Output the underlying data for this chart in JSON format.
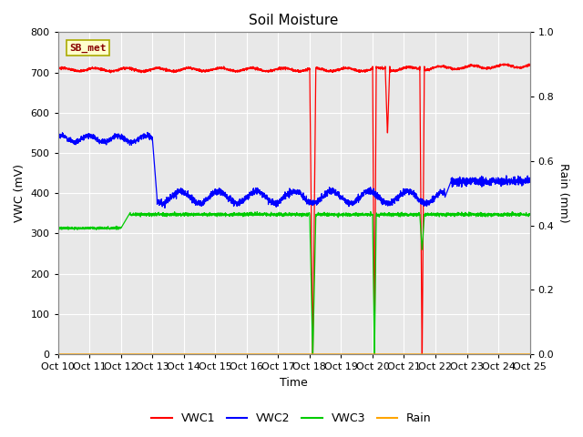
{
  "title": "Soil Moisture",
  "xlabel": "Time",
  "ylabel_left": "VWC (mV)",
  "ylabel_right": "Rain (mm)",
  "xlim": [
    0,
    15
  ],
  "ylim_left": [
    0,
    800
  ],
  "ylim_right": [
    0,
    1.0
  ],
  "xtick_labels": [
    "Oct 10",
    "Oct 11",
    "Oct 12",
    "Oct 13",
    "Oct 14",
    "Oct 15",
    "Oct 16",
    "Oct 17",
    "Oct 18",
    "Oct 19",
    "Oct 20",
    "Oct 21",
    "Oct 22",
    "Oct 23",
    "Oct 24",
    "Oct 25"
  ],
  "ytick_left": [
    0,
    100,
    200,
    300,
    400,
    500,
    600,
    700,
    800
  ],
  "ytick_right": [
    0.0,
    0.2,
    0.4,
    0.6,
    0.8,
    1.0
  ],
  "plot_bg_color": "#e8e8e8",
  "fig_bg_color": "#ffffff",
  "grid_color": "#ffffff",
  "legend_box_text": "SB_met",
  "legend_box_facecolor": "#ffffcc",
  "legend_box_edgecolor": "#aaaa00",
  "colors": {
    "VWC1": "#ff0000",
    "VWC2": "#0000ff",
    "VWC3": "#00cc00",
    "Rain": "#ffa500"
  },
  "vwc1_base": 707,
  "vwc2_base_early": 535,
  "vwc2_base_late": 390,
  "vwc3_base_early": 313,
  "vwc3_base_late": 350
}
